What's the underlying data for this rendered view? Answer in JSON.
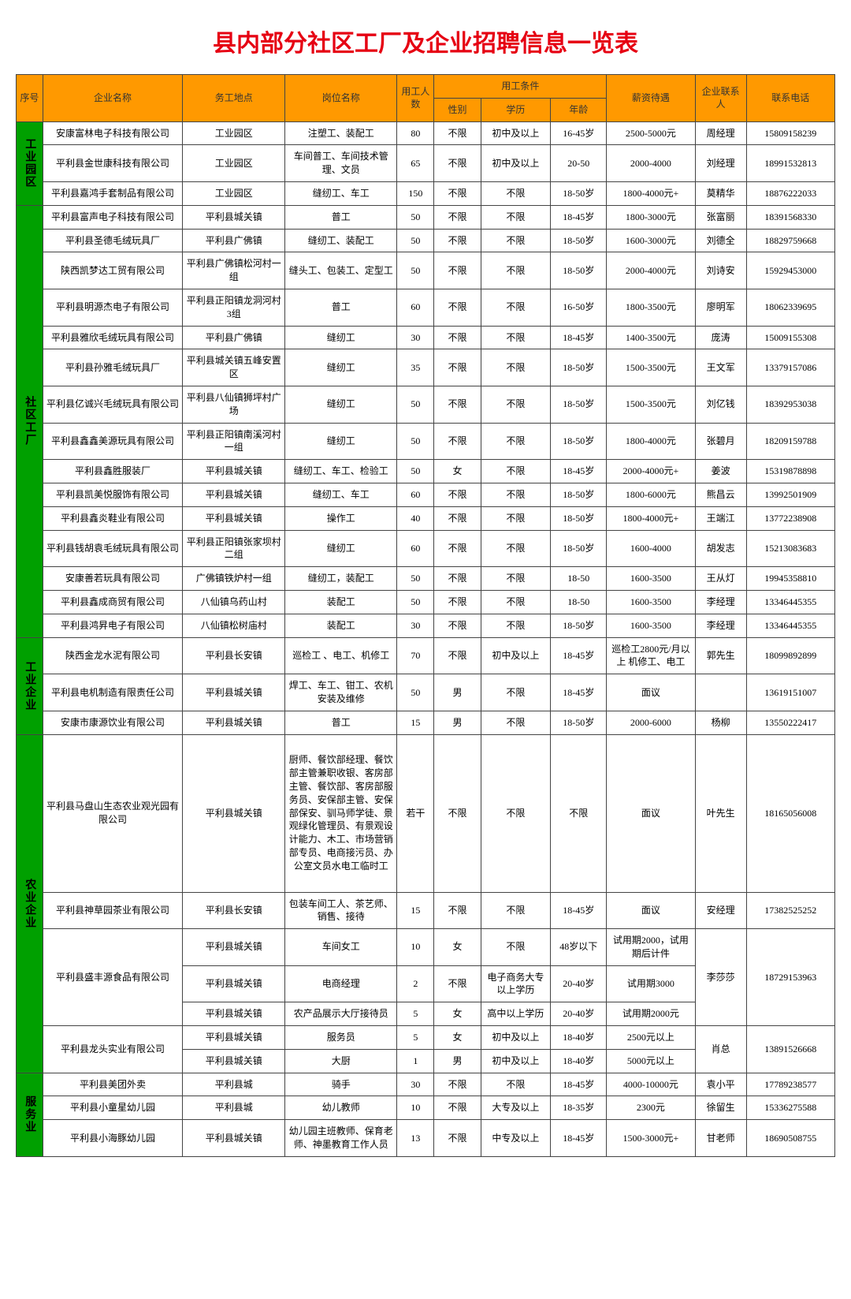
{
  "title": "县内部分社区工厂及企业招聘信息一览表",
  "headers": {
    "seq": "序号",
    "company": "企业名称",
    "location": "务工地点",
    "position": "岗位名称",
    "count": "用工人数",
    "conditions": "用工条件",
    "gender": "性别",
    "education": "学历",
    "age": "年龄",
    "salary": "薪资待遇",
    "contact": "企业联系人",
    "phone": "联系电话"
  },
  "sections": [
    {
      "name": "工业园区",
      "rows": [
        {
          "company": "安康富林电子科技有限公司",
          "location": "工业园区",
          "position": "注塑工、装配工",
          "count": "80",
          "gender": "不限",
          "edu": "初中及以上",
          "age": "16-45岁",
          "salary": "2500-5000元",
          "contact": "周经理",
          "phone": "15809158239"
        },
        {
          "company": "平利县金世康科技有限公司",
          "location": "工业园区",
          "position": "车间普工、车间技术管理、文员",
          "count": "65",
          "gender": "不限",
          "edu": "初中及以上",
          "age": "20-50",
          "salary": "2000-4000",
          "contact": "刘经理",
          "phone": "18991532813"
        },
        {
          "company": "平利县嘉鸿手套制品有限公司",
          "location": "工业园区",
          "position": "缝纫工、车工",
          "count": "150",
          "gender": "不限",
          "edu": "不限",
          "age": "18-50岁",
          "salary": "1800-4000元+",
          "contact": "莫精华",
          "phone": "18876222033"
        }
      ]
    },
    {
      "name": "社区工厂",
      "rows": [
        {
          "company": "平利县富声电子科技有限公司",
          "location": "平利县城关镇",
          "position": "普工",
          "count": "50",
          "gender": "不限",
          "edu": "不限",
          "age": "18-45岁",
          "salary": "1800-3000元",
          "contact": "张富丽",
          "phone": "18391568330"
        },
        {
          "company": "平利县圣德毛绒玩具厂",
          "location": "平利县广佛镇",
          "position": "缝纫工、装配工",
          "count": "50",
          "gender": "不限",
          "edu": "不限",
          "age": "18-50岁",
          "salary": "1600-3000元",
          "contact": "刘德全",
          "phone": "18829759668"
        },
        {
          "company": "陕西凯梦达工贸有限公司",
          "location": "平利县广佛镇松河村一组",
          "position": "缝头工、包装工、定型工",
          "count": "50",
          "gender": "不限",
          "edu": "不限",
          "age": "18-50岁",
          "salary": "2000-4000元",
          "contact": "刘诗安",
          "phone": "15929453000"
        },
        {
          "company": "平利县明源杰电子有限公司",
          "location": "平利县正阳镇龙洞河村3组",
          "position": "普工",
          "count": "60",
          "gender": "不限",
          "edu": "不限",
          "age": "16-50岁",
          "salary": "1800-3500元",
          "contact": "廖明军",
          "phone": "18062339695"
        },
        {
          "company": "平利县雅欣毛绒玩具有限公司",
          "location": "平利县广佛镇",
          "position": "缝纫工",
          "count": "30",
          "gender": "不限",
          "edu": "不限",
          "age": "18-45岁",
          "salary": "1400-3500元",
          "contact": "庞涛",
          "phone": "15009155308"
        },
        {
          "company": "平利县孙雅毛绒玩具厂",
          "location": "平利县城关镇五峰安置区",
          "position": "缝纫工",
          "count": "35",
          "gender": "不限",
          "edu": "不限",
          "age": "18-50岁",
          "salary": "1500-3500元",
          "contact": "王文军",
          "phone": "13379157086"
        },
        {
          "company": "平利县亿诚兴毛绒玩具有限公司",
          "location": "平利县八仙镇狮坪村广场",
          "position": "缝纫工",
          "count": "50",
          "gender": "不限",
          "edu": "不限",
          "age": "18-50岁",
          "salary": "1500-3500元",
          "contact": "刘亿钱",
          "phone": "18392953038"
        },
        {
          "company": "平利县鑫鑫美源玩具有限公司",
          "location": "平利县正阳镇南溪河村一组",
          "position": "缝纫工",
          "count": "50",
          "gender": "不限",
          "edu": "不限",
          "age": "18-50岁",
          "salary": "1800-4000元",
          "contact": "张碧月",
          "phone": "18209159788"
        },
        {
          "company": "平利县鑫胜服装厂",
          "location": "平利县城关镇",
          "position": "缝纫工、车工、检验工",
          "count": "50",
          "gender": "女",
          "edu": "不限",
          "age": "18-45岁",
          "salary": "2000-4000元+",
          "contact": "姜波",
          "phone": "15319878898"
        },
        {
          "company": "平利县凯美悦服饰有限公司",
          "location": "平利县城关镇",
          "position": "缝纫工、车工",
          "count": "60",
          "gender": "不限",
          "edu": "不限",
          "age": "18-50岁",
          "salary": "1800-6000元",
          "contact": "熊昌云",
          "phone": "13992501909"
        },
        {
          "company": "平利县鑫炎鞋业有限公司",
          "location": "平利县城关镇",
          "position": "操作工",
          "count": "40",
          "gender": "不限",
          "edu": "不限",
          "age": "18-50岁",
          "salary": "1800-4000元+",
          "contact": "王端江",
          "phone": "13772238908"
        },
        {
          "company": "平利县钱胡袁毛绒玩具有限公司",
          "location": "平利县正阳镇张家坝村二组",
          "position": "缝纫工",
          "count": "60",
          "gender": "不限",
          "edu": "不限",
          "age": "18-50岁",
          "salary": "1600-4000",
          "contact": "胡发志",
          "phone": "15213083683"
        },
        {
          "company": "安康善若玩具有限公司",
          "location": "广佛镇铁炉村一组",
          "position": "缝纫工，装配工",
          "count": "50",
          "gender": "不限",
          "edu": "不限",
          "age": "18-50",
          "salary": "1600-3500",
          "contact": "王从灯",
          "phone": "19945358810"
        },
        {
          "company": "平利县鑫成商贸有限公司",
          "location": "八仙镇乌药山村",
          "position": "装配工",
          "count": "50",
          "gender": "不限",
          "edu": "不限",
          "age": "18-50",
          "salary": "1600-3500",
          "contact": "李经理",
          "phone": "13346445355"
        },
        {
          "company": "平利县鸿昇电子有限公司",
          "location": "八仙镇松树庙村",
          "position": "装配工",
          "count": "30",
          "gender": "不限",
          "edu": "不限",
          "age": "18-50岁",
          "salary": "1600-3500",
          "contact": "李经理",
          "phone": "13346445355"
        }
      ]
    },
    {
      "name": "工业企业",
      "rows": [
        {
          "company": "陕西金龙水泥有限公司",
          "location": "平利县长安镇",
          "position": "巡检工 、电工、机修工",
          "count": "70",
          "gender": "不限",
          "edu": "初中及以上",
          "age": "18-45岁",
          "salary": "巡检工2800元/月以上 机修工、电工",
          "contact": "郭先生",
          "phone": "18099892899"
        },
        {
          "company": "平利县电机制造有限责任公司",
          "location": "平利县城关镇",
          "position": "焊工、车工、钳工、农机安装及维修",
          "count": "50",
          "gender": "男",
          "edu": "不限",
          "age": "18-45岁",
          "salary": "面议",
          "contact": "",
          "phone": "13619151007"
        },
        {
          "company": "安康市康源饮业有限公司",
          "location": "平利县城关镇",
          "position": "普工",
          "count": "15",
          "gender": "男",
          "edu": "不限",
          "age": "18-50岁",
          "salary": "2000-6000",
          "contact": "杨柳",
          "phone": "13550222417"
        }
      ]
    },
    {
      "name": "农业企业",
      "rows": [
        {
          "company": "平利县马盘山生态农业观光园有限公司",
          "location": "平利县城关镇",
          "position": "厨师、餐饮部经理、餐饮部主管兼职收银、客房部主管、餐饮部、客房部服务员、安保部主管、安保部保安、驯马师学徒、景观绿化管理员、有景观设计能力、木工、市场营销部专员、电商接污员、办公室文员水电工临时工",
          "count": "若干",
          "gender": "不限",
          "edu": "不限",
          "age": "不限",
          "salary": "面议",
          "contact": "叶先生",
          "phone": "18165056008",
          "tall": true
        },
        {
          "company": "平利县神草园茶业有限公司",
          "location": "平利县长安镇",
          "position": "包装车间工人、茶艺师、销售、接待",
          "count": "15",
          "gender": "不限",
          "edu": "不限",
          "age": "18-45岁",
          "salary": "面议",
          "contact": "安经理",
          "phone": "17382525252"
        }
      ],
      "merged": [
        {
          "company": "平利县盛丰源食品有限公司",
          "contact": "李莎莎",
          "phone": "18729153963",
          "subrows": [
            {
              "location": "平利县城关镇",
              "position": "车间女工",
              "count": "10",
              "gender": "女",
              "edu": "不限",
              "age": "48岁以下",
              "salary": "试用期2000，试用期后计件"
            },
            {
              "location": "平利县城关镇",
              "position": "电商经理",
              "count": "2",
              "gender": "不限",
              "edu": "电子商务大专以上学历",
              "age": "20-40岁",
              "salary": "试用期3000"
            },
            {
              "location": "平利县城关镇",
              "position": "农产品展示大厅接待员",
              "count": "5",
              "gender": "女",
              "edu": "高中以上学历",
              "age": "20-40岁",
              "salary": "试用期2000元"
            }
          ]
        },
        {
          "company": "平利县龙头实业有限公司",
          "contact": "肖总",
          "phone": "13891526668",
          "subrows": [
            {
              "location": "平利县城关镇",
              "position": "服务员",
              "count": "5",
              "gender": "女",
              "edu": "初中及以上",
              "age": "18-40岁",
              "salary": "2500元以上"
            },
            {
              "location": "平利县城关镇",
              "position": "大厨",
              "count": "1",
              "gender": "男",
              "edu": "初中及以上",
              "age": "18-40岁",
              "salary": "5000元以上"
            }
          ]
        }
      ]
    },
    {
      "name": "服务业",
      "rows": [
        {
          "company": "平利县美团外卖",
          "location": "平利县城",
          "position": "骑手",
          "count": "30",
          "gender": "不限",
          "edu": "不限",
          "age": "18-45岁",
          "salary": "4000-10000元",
          "contact": "袁小平",
          "phone": "17789238577"
        },
        {
          "company": "平利县小童星幼儿园",
          "location": "平利县城",
          "position": "幼儿教师",
          "count": "10",
          "gender": "不限",
          "edu": "大专及以上",
          "age": "18-35岁",
          "salary": "2300元",
          "contact": "徐留生",
          "phone": "15336275588"
        },
        {
          "company": "平利县小海豚幼儿园",
          "location": "平利县城关镇",
          "position": "幼儿园主班教师、保育老师、神墨教育工作人员",
          "count": "13",
          "gender": "不限",
          "edu": "中专及以上",
          "age": "18-45岁",
          "salary": "1500-3000元+",
          "contact": "甘老师",
          "phone": "18690508755"
        }
      ]
    }
  ]
}
